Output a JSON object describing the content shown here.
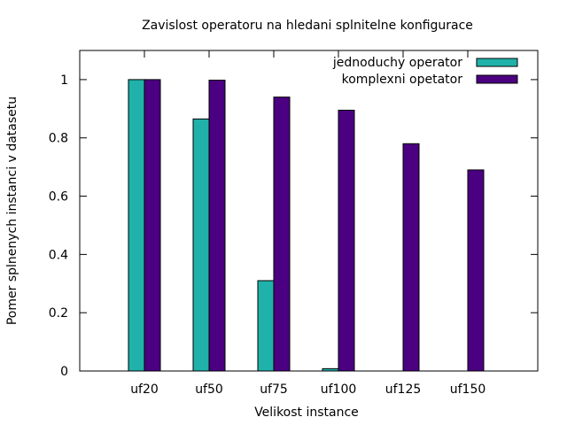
{
  "chart_data": {
    "type": "bar",
    "title": "Zavislost operatoru na hledani splnitelne konfigurace",
    "xlabel": "Velikost instance",
    "ylabel": "Pomer splnenych instanci v datasetu",
    "categories": [
      "uf20",
      "uf50",
      "uf75",
      "uf100",
      "uf125",
      "uf150"
    ],
    "ylim": [
      0,
      1.1
    ],
    "yticks": [
      0,
      0.2,
      0.4,
      0.6,
      0.8,
      1
    ],
    "ytick_labels": [
      "0",
      "0.2",
      "0.4",
      "0.6",
      "0.8",
      "1"
    ],
    "grid": false,
    "legend_position": "top-right",
    "series": [
      {
        "name": "jednoduchy operator",
        "color": "#20b2aa",
        "values": [
          1.0,
          0.865,
          0.31,
          0.008,
          0,
          0
        ]
      },
      {
        "name": "komplexni opetator",
        "color": "#4b0082",
        "values": [
          1.0,
          0.998,
          0.94,
          0.895,
          0.78,
          0.69
        ]
      }
    ]
  }
}
